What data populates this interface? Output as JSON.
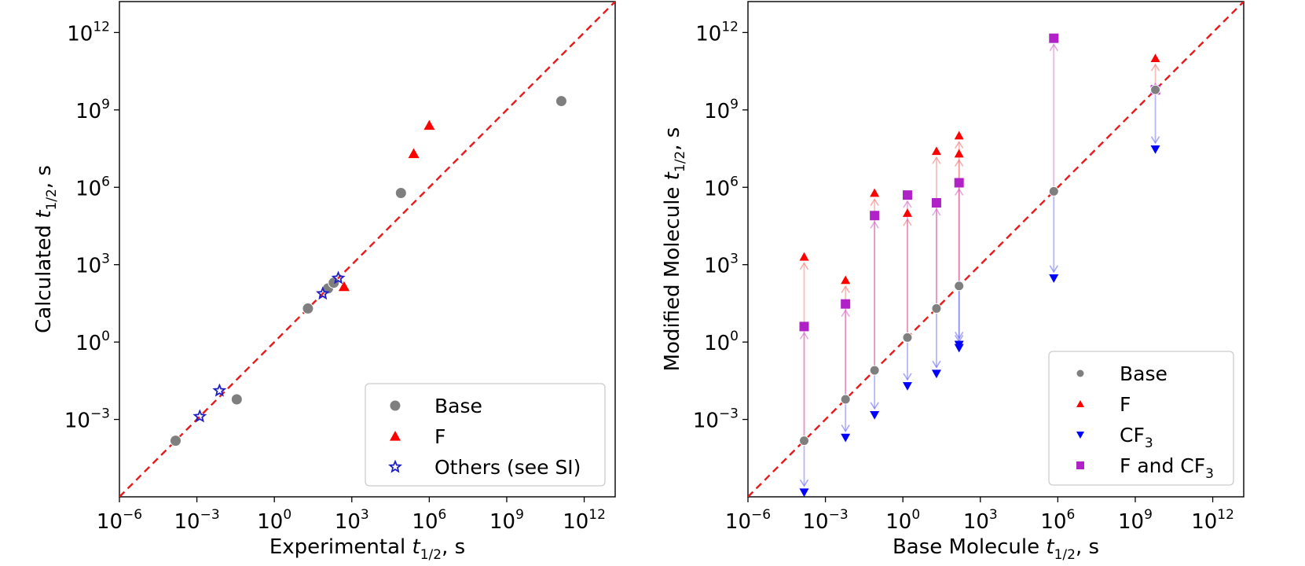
{
  "chart_data": [
    {
      "type": "scatter",
      "panel": "left",
      "xlabel": {
        "prefix": "Experimental ",
        "var": "t",
        "sub": "1/2",
        "suffix": ", s"
      },
      "ylabel": {
        "prefix": "Calculated ",
        "var": "t",
        "sub": "1/2",
        "suffix": ", s"
      },
      "xscale": "log10",
      "yscale": "log10",
      "xlim_exp": [
        -6,
        13.2
      ],
      "ylim_exp": [
        -6,
        13.2
      ],
      "x_tick_exps": [
        -6,
        -3,
        0,
        3,
        6,
        9,
        12
      ],
      "y_tick_exps": [
        -3,
        0,
        3,
        6,
        9,
        12
      ],
      "tick_base": "10",
      "reference_line": {
        "type": "y=x",
        "color": "#e8191b",
        "style": "dashed"
      },
      "legend_position": "lower-right",
      "series": [
        {
          "name": "Base",
          "marker": "circle",
          "color": "#7f7f7f",
          "points": [
            [
              0.00015,
              0.00015
            ],
            [
              0.035,
              0.006
            ],
            [
              20,
              20
            ],
            [
              120,
              120
            ],
            [
              200,
              200
            ],
            [
              80000,
              600000
            ],
            [
              130000000000.0,
              2200000000.0
            ]
          ]
        },
        {
          "name": "F",
          "marker": "triangle",
          "color": "#ff0000",
          "points": [
            [
              500,
              140
            ],
            [
              250000,
              20000000
            ],
            [
              1000000,
              250000000
            ]
          ]
        },
        {
          "name": "Others (see SI)",
          "marker": "star",
          "color": "#1f1fc8",
          "points": [
            [
              0.0013,
              0.0013
            ],
            [
              0.0075,
              0.013
            ],
            [
              75,
              75
            ],
            [
              300,
              300
            ]
          ]
        }
      ]
    },
    {
      "type": "scatter",
      "panel": "right",
      "xlabel": {
        "prefix": "Base Molecule ",
        "var": "t",
        "sub": "1/2",
        "suffix": ", s"
      },
      "ylabel": {
        "prefix": "Modified Molecule ",
        "var": "t",
        "sub": "1/2",
        "suffix": ", s"
      },
      "xscale": "log10",
      "yscale": "log10",
      "xlim_exp": [
        -6,
        13.2
      ],
      "ylim_exp": [
        -6,
        13.2
      ],
      "x_tick_exps": [
        -6,
        -3,
        0,
        3,
        6,
        9,
        12
      ],
      "y_tick_exps": [
        -3,
        0,
        3,
        6,
        9,
        12
      ],
      "tick_base": "10",
      "reference_line": {
        "type": "y=x",
        "color": "#e8191b",
        "style": "dashed"
      },
      "legend_position": "lower-right",
      "legend": [
        {
          "name": "Base",
          "marker": "circle",
          "color": "#7f7f7f"
        },
        {
          "name": "F",
          "marker": "triangle",
          "color": "#ff0000"
        },
        {
          "name": "CF",
          "sub": "3",
          "marker": "triangle-down",
          "color": "#0000ff"
        },
        {
          "name": "F and CF",
          "sub": "3",
          "marker": "square",
          "color": "#b022c8"
        }
      ],
      "groups": [
        {
          "base": 0.00015,
          "F": [
            2000
          ],
          "CF3": [
            1.5e-06
          ],
          "F_and_CF3": [
            4
          ]
        },
        {
          "base": 0.006,
          "F": [
            250
          ],
          "CF3": [
            0.0002
          ],
          "F_and_CF3": [
            30
          ]
        },
        {
          "base": 0.08,
          "F": [
            600000
          ],
          "CF3": [
            0.0015
          ],
          "F_and_CF3": [
            80000
          ]
        },
        {
          "base": 1.5,
          "F": [
            100000
          ],
          "CF3": [
            0.02
          ],
          "F_and_CF3": [
            500000
          ]
        },
        {
          "base": 20,
          "F": [
            25000000
          ],
          "CF3": [
            0.06
          ],
          "F_and_CF3": [
            250000
          ]
        },
        {
          "base": 150,
          "F": [
            100000000.0,
            20000000.0
          ],
          "CF3": [
            0.6,
            0.8
          ],
          "F_and_CF3": [
            1500000
          ]
        },
        {
          "base": 700000,
          "F": [],
          "CF3": [
            300
          ],
          "F_and_CF3": [
            600000000000.0
          ]
        },
        {
          "base": 6000000000.0,
          "F": [
            100000000000.0
          ],
          "CF3": [
            30000000.0
          ],
          "F_and_CF3": [
            6000000000.0
          ]
        }
      ]
    }
  ]
}
